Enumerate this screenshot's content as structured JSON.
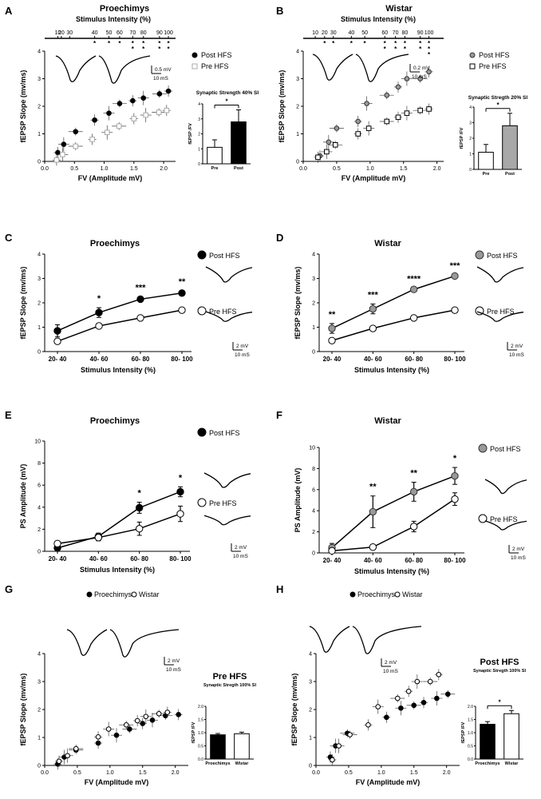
{
  "figure": {
    "panels": [
      {
        "letter": "A",
        "title": "Proechimys"
      },
      {
        "letter": "B",
        "title": "Wistar"
      },
      {
        "letter": "C",
        "title": "Proechimys"
      },
      {
        "letter": "D",
        "title": "Wistar"
      },
      {
        "letter": "E",
        "title": "Proechimys"
      },
      {
        "letter": "F",
        "title": "Wistar"
      },
      {
        "letter": "G",
        "title": ""
      },
      {
        "letter": "H",
        "title": ""
      }
    ],
    "colors": {
      "ink": "#000000",
      "gray_marker": "#999999",
      "open_gray": "#aaaaaa"
    }
  },
  "chart_data": [
    {
      "panel": "A",
      "type": "scatter",
      "title": "Proechimys",
      "top_axis_label": "Stimulus Intensity (%)",
      "top_ticks": [
        "10",
        "20",
        "30",
        "40",
        "50",
        "60",
        "70",
        "80",
        "90",
        "100"
      ],
      "top_tick_x": [
        0.22,
        0.28,
        0.42,
        0.84,
        1.08,
        1.26,
        1.48,
        1.66,
        1.93,
        2.08
      ],
      "top_stars": [
        "",
        "",
        "",
        "*",
        "*",
        "*",
        "**",
        "**",
        "**",
        "**"
      ],
      "xlabel": "FV (Amplitude mV)",
      "ylabel": "fEPSP Slope (mv/ms)",
      "xlim": [
        0,
        2.2
      ],
      "ylim": [
        0,
        4
      ],
      "x_ticks": [
        "0.0",
        "0.5",
        "1.0",
        "1.5",
        "2.0"
      ],
      "y_ticks": [
        "0",
        "1",
        "2",
        "3",
        "4"
      ],
      "legend": [
        "Post HFS",
        "Pre HFS"
      ],
      "series": [
        {
          "name": "Post HFS",
          "x": [
            0.22,
            0.32,
            0.52,
            0.84,
            1.08,
            1.26,
            1.48,
            1.66,
            1.93,
            2.08
          ],
          "y": [
            0.32,
            0.62,
            1.08,
            1.5,
            1.75,
            2.1,
            2.2,
            2.3,
            2.45,
            2.55
          ]
        },
        {
          "name": "Pre HFS",
          "x": [
            0.2,
            0.3,
            0.52,
            0.8,
            1.05,
            1.25,
            1.5,
            1.7,
            1.92,
            2.05
          ],
          "y": [
            0.05,
            0.25,
            0.55,
            0.8,
            1.05,
            1.28,
            1.55,
            1.68,
            1.78,
            1.85
          ]
        }
      ],
      "scale_bar": "0.5 mV",
      "time_bar": "10 mS",
      "inset": {
        "title": "Synaptic Strength 40% SI",
        "ylabel": "fEPSP /FV",
        "categories": [
          "Pre",
          "Post"
        ],
        "values": [
          1.1,
          2.8
        ],
        "errors": [
          0.5,
          0.8
        ],
        "ylim": [
          0,
          4
        ],
        "y_ticks": [
          "0",
          "1",
          "2",
          "3",
          "4"
        ],
        "sig": "*"
      }
    },
    {
      "panel": "B",
      "type": "scatter",
      "title": "Wistar",
      "top_axis_label": "Stimulus Intensity (%)",
      "top_ticks": [
        "10",
        "20",
        "30",
        "40",
        "50",
        "60",
        "70",
        "80",
        "90",
        "100"
      ],
      "top_tick_x": [
        0.18,
        0.32,
        0.45,
        0.72,
        0.92,
        1.22,
        1.38,
        1.52,
        1.75,
        1.88
      ],
      "top_stars": [
        "",
        "*",
        "*",
        "*",
        "*",
        "**",
        "**",
        "**",
        "**",
        "***"
      ],
      "xlabel": "FV (Amplitude mV)",
      "ylabel": "fEPSP Slope (mv/ms)",
      "xlim": [
        0,
        2.1
      ],
      "ylim": [
        0,
        4
      ],
      "x_ticks": [
        "0.0",
        "0.5",
        "1.0",
        "1.5",
        "2.0"
      ],
      "y_ticks": [
        "0",
        "1",
        "2",
        "3",
        "4"
      ],
      "legend": [
        "Post HFS",
        "Pre HFS"
      ],
      "series": [
        {
          "name": "Post HFS",
          "x": [
            0.25,
            0.38,
            0.5,
            0.82,
            0.95,
            1.25,
            1.42,
            1.55,
            1.75,
            1.88
          ],
          "y": [
            0.2,
            0.7,
            1.2,
            1.45,
            2.1,
            2.4,
            2.7,
            3.0,
            3.0,
            3.25
          ]
        },
        {
          "name": "Pre HFS",
          "x": [
            0.22,
            0.35,
            0.48,
            0.82,
            0.98,
            1.25,
            1.42,
            1.55,
            1.75,
            1.88
          ],
          "y": [
            0.15,
            0.35,
            0.6,
            1.0,
            1.2,
            1.45,
            1.6,
            1.75,
            1.85,
            1.9
          ]
        }
      ],
      "scale_bar": "0.2 mV",
      "time_bar": "10 mS",
      "inset": {
        "title": "Synaptic Stregth 20% SI",
        "ylabel": "fEPSP /FV",
        "categories": [
          "Pre",
          "Post"
        ],
        "values": [
          1.1,
          2.8
        ],
        "errors": [
          0.5,
          0.8
        ],
        "ylim": [
          0,
          4
        ],
        "y_ticks": [
          "0",
          "1",
          "2",
          "3",
          "4"
        ],
        "sig": "*"
      }
    },
    {
      "panel": "C",
      "type": "line",
      "title": "Proechimys",
      "categories": [
        "20- 40",
        "40- 60",
        "60- 80",
        "80- 100"
      ],
      "xlabel": "Stimulus Intensity (%)",
      "ylabel": "fEPSP Slope (mv/ms)",
      "ylim": [
        0,
        4
      ],
      "y_ticks": [
        "0",
        "1",
        "2",
        "3",
        "4"
      ],
      "legend": [
        "Post HFS",
        "Pre HFS"
      ],
      "series": [
        {
          "name": "Post HFS",
          "values": [
            0.85,
            1.6,
            2.15,
            2.4
          ],
          "errors": [
            0.25,
            0.2,
            0.1,
            0.1
          ]
        },
        {
          "name": "Pre HFS",
          "values": [
            0.42,
            1.05,
            1.38,
            1.7
          ],
          "errors": [
            0.05,
            0.05,
            0.05,
            0.08
          ]
        }
      ],
      "sig": [
        "",
        "*",
        "***",
        "**"
      ],
      "scale_bar": "2 mV",
      "time_bar": "10 mS"
    },
    {
      "panel": "D",
      "type": "line",
      "title": "Wistar",
      "categories": [
        "20- 40",
        "40- 60",
        "60- 80",
        "80- 100"
      ],
      "xlabel": "Stimulus Intensity (%)",
      "ylabel": "fEPSP Slope (mv/ms)",
      "ylim": [
        0,
        4
      ],
      "y_ticks": [
        "0",
        "1",
        "2",
        "3",
        "4"
      ],
      "legend": [
        "Post HFS",
        "Pre HFS"
      ],
      "series": [
        {
          "name": "Post HFS",
          "values": [
            0.95,
            1.75,
            2.55,
            3.1
          ],
          "errors": [
            0.2,
            0.2,
            0.05,
            0.05
          ]
        },
        {
          "name": "Pre HFS",
          "values": [
            0.45,
            0.95,
            1.38,
            1.7
          ],
          "errors": [
            0.05,
            0.05,
            0.05,
            0.05
          ]
        }
      ],
      "sig": [
        "**",
        "***",
        "****",
        "***"
      ],
      "scale_bar": "2 mV",
      "time_bar": "10 mS"
    },
    {
      "panel": "E",
      "type": "line",
      "title": "Proechimys",
      "categories": [
        "20- 40",
        "40- 60",
        "60- 80",
        "80- 100"
      ],
      "xlabel": "Stimulus Intensity (%)",
      "ylabel": "PS Amplitude (mV)",
      "ylim": [
        0,
        10
      ],
      "y_ticks": [
        "0",
        "2",
        "4",
        "6",
        "8",
        "10"
      ],
      "legend": [
        "Post HFS",
        "Pre HFS"
      ],
      "series": [
        {
          "name": "Post HFS",
          "values": [
            0.3,
            1.35,
            3.95,
            5.4
          ],
          "errors": [
            0.2,
            0.3,
            0.5,
            0.45
          ]
        },
        {
          "name": "Pre HFS",
          "values": [
            0.7,
            1.25,
            2.05,
            3.4
          ],
          "errors": [
            0.15,
            0.3,
            0.6,
            0.7
          ]
        }
      ],
      "sig": [
        "",
        "",
        "*",
        "*"
      ],
      "scale_bar": "2 mV",
      "time_bar": "10 mS"
    },
    {
      "panel": "F",
      "type": "line",
      "title": "Wistar",
      "categories": [
        "20- 40",
        "40- 60",
        "60- 80",
        "80- 100"
      ],
      "xlabel": "Stimulus Intensity (%)",
      "ylabel": "PS Amplitude (mV)",
      "ylim": [
        0,
        10
      ],
      "y_ticks": [
        "0",
        "2",
        "4",
        "6",
        "8",
        "10"
      ],
      "legend": [
        "Post HFS",
        "Pre HFS"
      ],
      "series": [
        {
          "name": "Post HFS",
          "values": [
            0.5,
            3.9,
            5.8,
            7.3
          ],
          "errors": [
            0.4,
            1.5,
            0.9,
            0.8
          ]
        },
        {
          "name": "Pre HFS",
          "values": [
            0.2,
            0.55,
            2.5,
            5.1
          ],
          "errors": [
            0.1,
            0.1,
            0.5,
            0.6
          ]
        }
      ],
      "sig": [
        "",
        "**",
        "**",
        "*"
      ],
      "scale_bar": "2 mV",
      "time_bar": "10 mS"
    },
    {
      "panel": "G",
      "type": "scatter",
      "xlabel": "FV (Amplitude mV)",
      "ylabel": "fEPSP Slope (mv/ms)",
      "xlim": [
        0,
        2.2
      ],
      "ylim": [
        0,
        4
      ],
      "x_ticks": [
        "0.0",
        "0.5",
        "1.0",
        "1.5",
        "2.0"
      ],
      "y_ticks": [
        "0",
        "1",
        "2",
        "3",
        "4"
      ],
      "legend": [
        "Proechimys",
        "Wistar"
      ],
      "series": [
        {
          "name": "Proechimys",
          "x": [
            0.2,
            0.3,
            0.48,
            0.82,
            1.1,
            1.3,
            1.5,
            1.65,
            1.85,
            2.05
          ],
          "y": [
            0.05,
            0.3,
            0.55,
            0.8,
            1.08,
            1.3,
            1.5,
            1.62,
            1.78,
            1.82
          ]
        },
        {
          "name": "Wistar",
          "x": [
            0.22,
            0.35,
            0.48,
            0.82,
            0.98,
            1.25,
            1.42,
            1.55,
            1.75,
            1.88
          ],
          "y": [
            0.15,
            0.35,
            0.6,
            1.02,
            1.3,
            1.45,
            1.6,
            1.75,
            1.85,
            1.9
          ]
        }
      ],
      "scale_bar": "2 mV",
      "time_bar": "10 mS",
      "inset": {
        "title": "Pre HFS",
        "subtitle": "Synaptic Stregth 100% SI",
        "ylabel": "fEPSP /FV",
        "categories": [
          "Proechimys",
          "Wistar"
        ],
        "values": [
          0.92,
          0.96
        ],
        "errors": [
          0.05,
          0.06
        ],
        "ylim": [
          0,
          2
        ],
        "y_ticks": [
          "0.0",
          "0.5",
          "1.0",
          "1.5",
          "2.0"
        ],
        "sig": ""
      }
    },
    {
      "panel": "H",
      "type": "scatter",
      "xlabel": "FV (Amplitude mV)",
      "ylabel": "fEPSP Slope (mv/ms)",
      "xlim": [
        0,
        2.2
      ],
      "ylim": [
        0,
        4
      ],
      "x_ticks": [
        "0.0",
        "0.5",
        "1.0",
        "1.5",
        "2.0"
      ],
      "y_ticks": [
        "0",
        "1",
        "2",
        "3",
        "4"
      ],
      "legend": [
        "Proechimys",
        "Wistar"
      ],
      "series": [
        {
          "name": "Proechimys",
          "x": [
            0.22,
            0.3,
            0.48,
            1.08,
            1.3,
            1.5,
            1.65,
            1.85,
            2.02
          ],
          "y": [
            0.3,
            0.7,
            1.15,
            1.72,
            2.05,
            2.15,
            2.25,
            2.4,
            2.55
          ]
        },
        {
          "name": "Wistar",
          "x": [
            0.25,
            0.35,
            0.52,
            0.8,
            0.95,
            1.25,
            1.42,
            1.55,
            1.75,
            1.88
          ],
          "y": [
            0.2,
            0.7,
            1.1,
            1.45,
            2.1,
            2.4,
            2.65,
            3.0,
            3.0,
            3.25
          ]
        }
      ],
      "scale_bar": "2 mV",
      "time_bar": "10 mS",
      "inset": {
        "title": "Post HFS",
        "subtitle": "Synaptic Stregth 100% SI",
        "ylabel": "fEPSP /FV",
        "categories": [
          "Proechimys",
          "Wistar"
        ],
        "values": [
          1.32,
          1.72
        ],
        "errors": [
          0.1,
          0.12
        ],
        "ylim": [
          0,
          2
        ],
        "y_ticks": [
          "0.0",
          "0.5",
          "1.0",
          "1.5",
          "2.0"
        ],
        "sig": "*"
      }
    }
  ]
}
